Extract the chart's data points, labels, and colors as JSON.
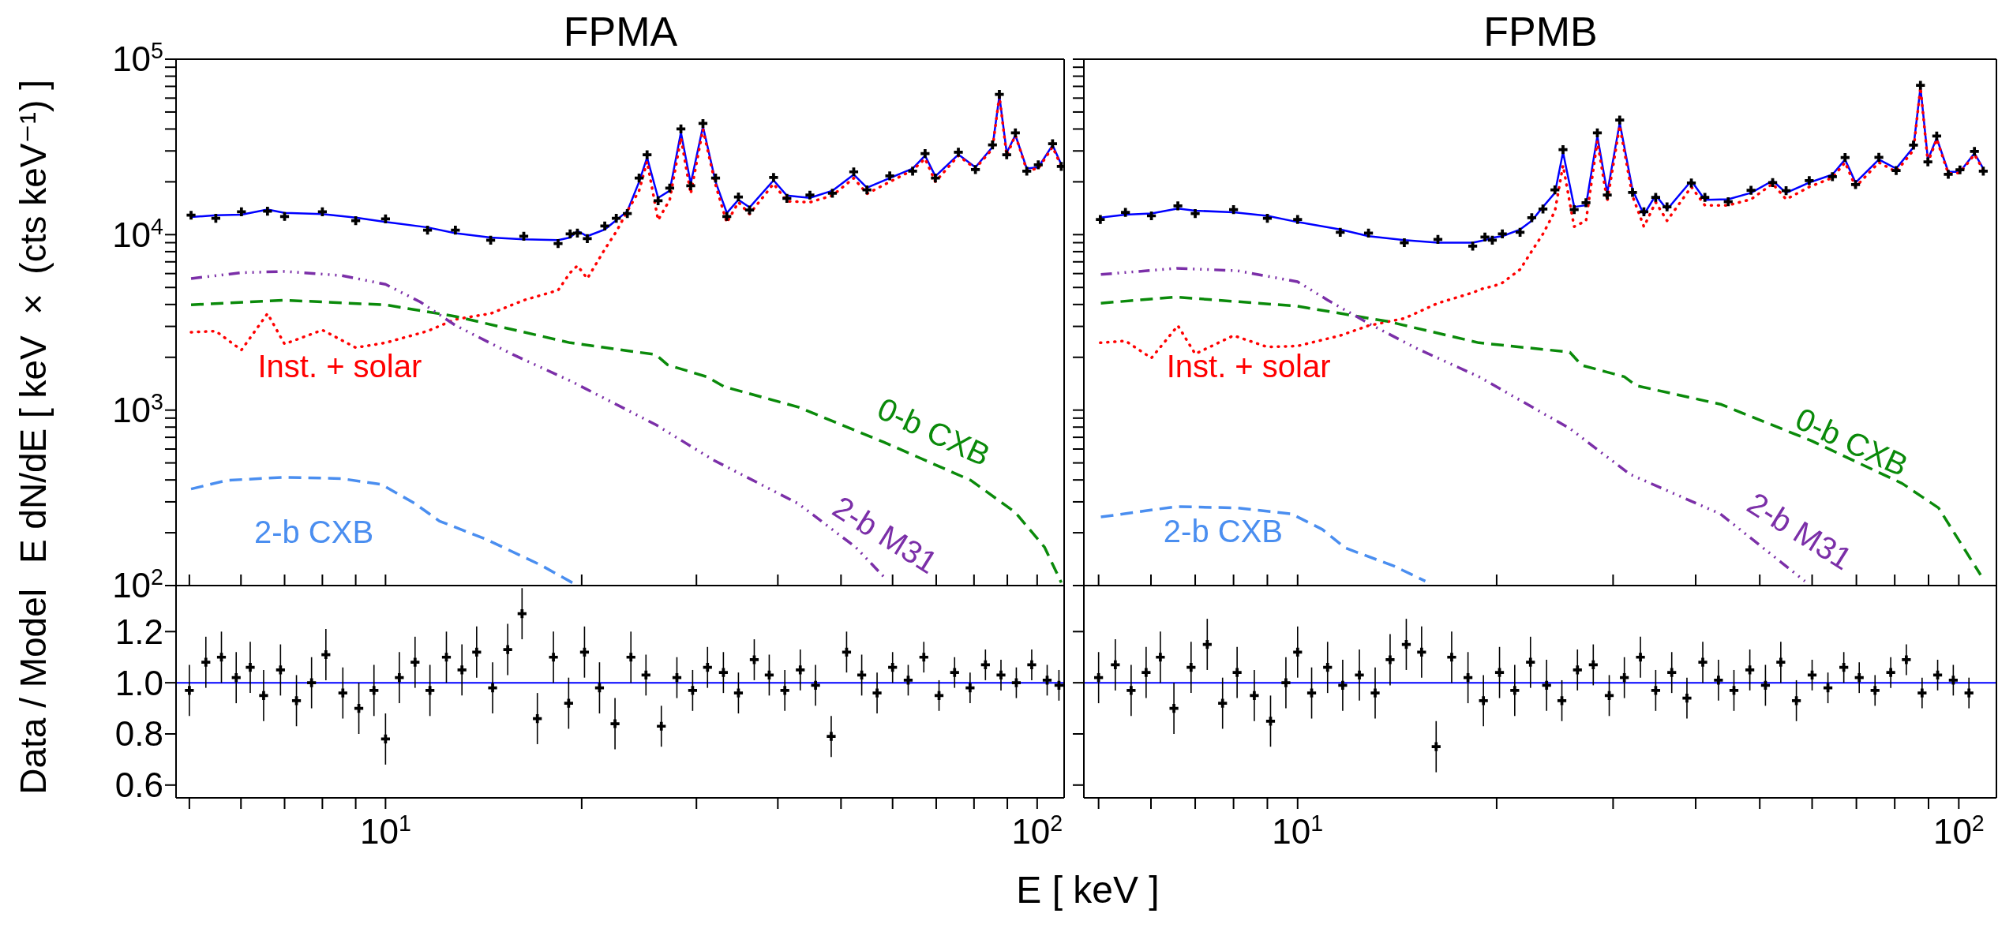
{
  "chart_data": [
    {
      "type": "line",
      "title": "FPMA",
      "ylabel": "E dN/dE [ keV × (cts keV⁻¹) ]",
      "log": "xy",
      "tick_labels": "y",
      "xlim": [
        4.77,
        110
      ],
      "ylim": [
        100,
        100000
      ],
      "xticks": [
        {
          "value": 5,
          "label": null
        },
        {
          "value": 6,
          "label": null
        },
        {
          "value": 7,
          "label": null
        },
        {
          "value": 8,
          "label": null
        },
        {
          "value": 9,
          "label": null
        },
        {
          "value": 10,
          "label": null
        },
        {
          "value": 20,
          "label": null
        },
        {
          "value": 30,
          "label": null
        },
        {
          "value": 40,
          "label": null
        },
        {
          "value": 50,
          "label": null
        },
        {
          "value": 60,
          "label": null
        },
        {
          "value": 70,
          "label": null
        },
        {
          "value": 80,
          "label": null
        },
        {
          "value": 90,
          "label": null
        },
        {
          "value": 100,
          "label": null
        }
      ],
      "yticks": [
        {
          "value": 100,
          "label": "10$^{2}$"
        },
        {
          "value": 200,
          "label": null
        },
        {
          "value": 300,
          "label": null
        },
        {
          "value": 400,
          "label": null
        },
        {
          "value": 500,
          "label": null
        },
        {
          "value": 600,
          "label": null
        },
        {
          "value": 700,
          "label": null
        },
        {
          "value": 800,
          "label": null
        },
        {
          "value": 900,
          "label": null
        },
        {
          "value": 1000,
          "label": "10$^{3}$"
        },
        {
          "value": 2000,
          "label": null
        },
        {
          "value": 3000,
          "label": null
        },
        {
          "value": 4000,
          "label": null
        },
        {
          "value": 5000,
          "label": null
        },
        {
          "value": 6000,
          "label": null
        },
        {
          "value": 7000,
          "label": null
        },
        {
          "value": 8000,
          "label": null
        },
        {
          "value": 9000,
          "label": null
        },
        {
          "value": 10000,
          "label": "10$^{4}$"
        },
        {
          "value": 20000,
          "label": null
        },
        {
          "value": 30000,
          "label": null
        },
        {
          "value": 40000,
          "label": null
        },
        {
          "value": 50000,
          "label": null
        },
        {
          "value": 60000,
          "label": null
        },
        {
          "value": 70000,
          "label": null
        },
        {
          "value": 80000,
          "label": null
        },
        {
          "value": 90000,
          "label": null
        },
        {
          "value": 100000,
          "label": "10$^{5}$"
        }
      ],
      "series": [
        {
          "type": "scatter",
          "color": "#000000",
          "marker": "cross",
          "x": [
            5.03,
            5.49,
            6.01,
            6.59,
            7.0,
            8.0,
            9.0,
            10,
            11.6,
            12.8,
            14.5,
            16.3,
            18.4,
            19.2,
            19.7,
            20.4,
            21.7,
            22.6,
            23.5,
            24.5,
            25.2,
            26.2,
            27.3,
            28.4,
            29.4,
            30.7,
            32.1,
            33.4,
            34.8,
            36.2,
            39.4,
            41.3,
            44.8,
            48.5,
            52.3,
            54.8,
            59.4,
            64.4,
            67.3,
            69.8,
            75.7,
            80.4,
            85.4,
            87.5,
            89.8,
            92.6,
            96.4,
            100.4,
            105.6,
            108.9
          ],
          "values": [
            12900,
            12400,
            13500,
            13600,
            12700,
            13500,
            12000,
            12300,
            10600,
            10600,
            9300,
            9800,
            8900,
            10100,
            10200,
            9500,
            11200,
            12400,
            13200,
            21000,
            28500,
            15600,
            18400,
            40000,
            19000,
            43000,
            21000,
            12700,
            16400,
            13800,
            21200,
            16100,
            16800,
            17200,
            22800,
            18000,
            21600,
            23000,
            29000,
            21000,
            29500,
            23500,
            32500,
            63000,
            28500,
            38000,
            23000,
            25000,
            33000,
            24500
          ],
          "errors": [
            650,
            600,
            700,
            700,
            650,
            700,
            600,
            600,
            550,
            550,
            500,
            500,
            450,
            500,
            500,
            500,
            550,
            600,
            650,
            1000,
            1400,
            800,
            900,
            2000,
            950,
            2100,
            1000,
            650,
            800,
            700,
            1000,
            800,
            850,
            850,
            1100,
            900,
            1100,
            1150,
            1450,
            1050,
            1500,
            1200,
            1600,
            3000,
            1400,
            1900,
            1150,
            1250,
            1650,
            1200
          ]
        },
        {
          "color": "#0000ff",
          "line_style": "solid",
          "x": [
            5.03,
            5.49,
            6.01,
            6.59,
            7.0,
            8.0,
            9.0,
            10,
            11.6,
            12.8,
            14.5,
            16.3,
            18.4,
            19.2,
            19.7,
            20.4,
            21.7,
            22.6,
            23.5,
            24.5,
            25.2,
            26.2,
            27.3,
            28.4,
            29.4,
            30.7,
            32.1,
            33.4,
            34.8,
            36.2,
            39.4,
            41.3,
            44.8,
            48.5,
            52.3,
            54.8,
            59.4,
            64.4,
            67.3,
            69.8,
            75.7,
            80.4,
            85.4,
            87.5,
            89.8,
            92.6,
            96.4,
            100.4,
            105.6,
            108.9
          ],
          "values": [
            12600,
            12900,
            13000,
            13900,
            13300,
            13100,
            12500,
            11800,
            11000,
            10200,
            9620,
            9400,
            9300,
            9620,
            10500,
            9800,
            10700,
            12100,
            13600,
            20000,
            27500,
            16200,
            17800,
            38300,
            19500,
            41400,
            20000,
            13300,
            15800,
            14300,
            20400,
            16700,
            16200,
            17800,
            22000,
            18500,
            21000,
            23800,
            28200,
            21500,
            28600,
            24200,
            31600,
            61700,
            29300,
            36900,
            23800,
            24200,
            32400,
            25100
          ]
        },
        {
          "type": "line",
          "name": "Inst. + solar",
          "color": "#ff0000",
          "line_style": "dotted",
          "x": [
            5.03,
            5.49,
            6.01,
            6.59,
            7.0,
            8.0,
            9.0,
            10,
            11.6,
            12.8,
            14.5,
            16.3,
            18.4,
            19.2,
            19.7,
            20.4,
            21.7,
            22.6,
            23.5,
            24.5,
            25.2,
            26.2,
            27.3,
            28.4,
            29.4,
            30.7,
            32.1,
            33.4,
            34.8,
            36.2,
            39.4,
            41.3,
            44.8,
            48.5,
            52.3,
            54.8,
            59.4,
            64.4,
            67.3,
            69.8,
            75.7,
            80.4,
            85.4,
            87.5,
            89.8,
            92.6,
            96.4,
            100.4,
            105.6,
            108.9
          ],
          "values": [
            2780,
            2820,
            2200,
            3550,
            2380,
            2860,
            2270,
            2420,
            2820,
            3290,
            3550,
            4230,
            4820,
            6070,
            6660,
            5620,
            8250,
            10400,
            13600,
            17800,
            26100,
            12100,
            15800,
            35500,
            17100,
            39800,
            19200,
            11700,
            15300,
            13100,
            19500,
            15500,
            15300,
            16700,
            21000,
            17100,
            20000,
            23300,
            27100,
            20000,
            28200,
            23800,
            30900,
            61700,
            28200,
            36900,
            23300,
            23800,
            31600,
            24500
          ]
        },
        {
          "type": "line",
          "name": "0-b CXB",
          "color": "#0a8a0a",
          "line_style": "dashed",
          "x": [
            5.03,
            7.0,
            10,
            12.8,
            19.2,
            26.0,
            27.1,
            31.1,
            33.1,
            43.0,
            58.2,
            79.1,
            92.6,
            102.7,
            108.9
          ],
          "values": [
            3980,
            4230,
            3980,
            3420,
            2420,
            2070,
            1810,
            1550,
            1360,
            1040,
            656,
            398,
            261,
            165,
            104
          ]
        },
        {
          "type": "line",
          "name": "2-b M31",
          "color": "#7b2fa8",
          "line_style": "dashdot",
          "x": [
            5.03,
            6.01,
            7.0,
            8.56,
            10,
            11.3,
            12.8,
            15.7,
            19.2,
            26.0,
            31.8,
            43.0,
            52.7,
            58.2
          ],
          "values": [
            5620,
            6070,
            6170,
            5850,
            5210,
            4140,
            3040,
            2070,
            1470,
            825,
            521,
            293,
            165,
            112
          ]
        },
        {
          "type": "line",
          "name": "2-b CXB",
          "color": "#4a8ef0",
          "line_style": "dashed",
          "x": [
            5.03,
            5.71,
            7.0,
            8.56,
            9.86,
            11.1,
            12.1,
            14.2,
            17.3,
            19.7
          ],
          "values": [
            355,
            398,
            414,
            407,
            377,
            293,
            233,
            185,
            131,
            100
          ]
        }
      ]
    },
    {
      "type": "line",
      "title": "FPMB",
      "log": "xy",
      "tick_labels": false,
      "xlim": [
        4.75,
        114
      ],
      "ylim": [
        100,
        100000
      ],
      "xticks": [
        {
          "value": 5,
          "label": null
        },
        {
          "value": 6,
          "label": null
        },
        {
          "value": 7,
          "label": null
        },
        {
          "value": 8,
          "label": null
        },
        {
          "value": 9,
          "label": null
        },
        {
          "value": 10,
          "label": null
        },
        {
          "value": 20,
          "label": null
        },
        {
          "value": 30,
          "label": null
        },
        {
          "value": 40,
          "label": null
        },
        {
          "value": 50,
          "label": null
        },
        {
          "value": 60,
          "label": null
        },
        {
          "value": 70,
          "label": null
        },
        {
          "value": 80,
          "label": null
        },
        {
          "value": 90,
          "label": null
        },
        {
          "value": 100,
          "label": null
        }
      ],
      "yticks": [
        {
          "value": 100,
          "label": null
        },
        {
          "value": 200,
          "label": null
        },
        {
          "value": 300,
          "label": null
        },
        {
          "value": 400,
          "label": null
        },
        {
          "value": 500,
          "label": null
        },
        {
          "value": 600,
          "label": null
        },
        {
          "value": 700,
          "label": null
        },
        {
          "value": 800,
          "label": null
        },
        {
          "value": 900,
          "label": null
        },
        {
          "value": 1000,
          "label": null
        },
        {
          "value": 2000,
          "label": null
        },
        {
          "value": 3000,
          "label": null
        },
        {
          "value": 4000,
          "label": null
        },
        {
          "value": 5000,
          "label": null
        },
        {
          "value": 6000,
          "label": null
        },
        {
          "value": 7000,
          "label": null
        },
        {
          "value": 8000,
          "label": null
        },
        {
          "value": 9000,
          "label": null
        },
        {
          "value": 10000,
          "label": null
        },
        {
          "value": 20000,
          "label": null
        },
        {
          "value": 30000,
          "label": null
        },
        {
          "value": 40000,
          "label": null
        },
        {
          "value": 50000,
          "label": null
        },
        {
          "value": 60000,
          "label": null
        },
        {
          "value": 70000,
          "label": null
        },
        {
          "value": 80000,
          "label": null
        },
        {
          "value": 90000,
          "label": null
        },
        {
          "value": 100000,
          "label": null
        }
      ],
      "series": [
        {
          "type": "scatter",
          "color": "#000000",
          "marker": "cross",
          "x": [
            5.03,
            5.49,
            6.01,
            6.59,
            7.0,
            8.0,
            9.0,
            10,
            11.6,
            12.8,
            14.5,
            16.3,
            18.4,
            19.2,
            19.7,
            20.4,
            21.7,
            22.6,
            23.5,
            24.5,
            25.2,
            26.2,
            27.3,
            28.4,
            29.4,
            30.7,
            32.1,
            33.4,
            34.8,
            36.2,
            39.4,
            41.3,
            44.8,
            48.5,
            52.3,
            54.8,
            59.4,
            64.4,
            67.3,
            69.8,
            75.7,
            80.4,
            85.4,
            87.5,
            89.8,
            92.6,
            96.4,
            100.4,
            105.6,
            108.9
          ],
          "values": [
            12200,
            13400,
            12800,
            14600,
            13200,
            13900,
            12400,
            12200,
            10300,
            10200,
            9000,
            9400,
            8600,
            9700,
            9300,
            10100,
            10300,
            12500,
            14000,
            18000,
            30500,
            13900,
            15200,
            38000,
            16800,
            45000,
            17400,
            13500,
            16300,
            14400,
            19700,
            16300,
            15400,
            17900,
            19800,
            17800,
            20300,
            21400,
            27500,
            19300,
            27600,
            23200,
            32400,
            71000,
            26000,
            36500,
            22100,
            23400,
            29800,
            23000
          ],
          "errors": [
            600,
            650,
            650,
            700,
            650,
            700,
            600,
            600,
            500,
            500,
            450,
            450,
            450,
            500,
            450,
            500,
            500,
            600,
            700,
            900,
            1500,
            700,
            750,
            1900,
            850,
            2200,
            850,
            650,
            800,
            700,
            1000,
            800,
            750,
            900,
            1000,
            900,
            1000,
            1050,
            1400,
            950,
            1400,
            1150,
            1600,
            3500,
            1300,
            1800,
            1100,
            1150,
            1500,
            1150
          ]
        },
        {
          "color": "#0000ff",
          "line_style": "solid",
          "x": [
            5.03,
            5.49,
            6.01,
            6.59,
            7.0,
            8.0,
            9.0,
            10,
            11.6,
            12.8,
            14.5,
            16.3,
            18.4,
            19.2,
            19.7,
            20.4,
            21.7,
            22.6,
            23.5,
            24.5,
            25.2,
            26.2,
            27.3,
            28.4,
            29.4,
            30.7,
            32.1,
            33.4,
            34.8,
            36.2,
            39.4,
            41.3,
            44.8,
            48.5,
            52.3,
            54.8,
            59.4,
            64.4,
            67.3,
            69.8,
            75.7,
            80.4,
            85.4,
            87.5,
            89.8,
            92.6,
            96.4,
            100.4,
            105.6,
            108.9
          ],
          "values": [
            12500,
            13000,
            13200,
            14100,
            13700,
            13400,
            12800,
            11800,
            10700,
            9800,
            9300,
            9000,
            9000,
            9300,
            9600,
            9800,
            10700,
            12000,
            14400,
            17300,
            29500,
            14400,
            14700,
            36400,
            17300,
            43400,
            18000,
            13000,
            16800,
            13900,
            20300,
            15800,
            15900,
            17300,
            20300,
            17300,
            19800,
            22000,
            26800,
            19800,
            26800,
            23800,
            31500,
            69100,
            26800,
            35500,
            22800,
            22800,
            29100,
            23800
          ]
        },
        {
          "type": "line",
          "name": "Inst. + solar",
          "color": "#ff0000",
          "line_style": "dotted",
          "x": [
            5.03,
            5.49,
            6.01,
            6.59,
            7.0,
            8.0,
            9.0,
            10,
            11.6,
            12.8,
            14.5,
            16.3,
            18.4,
            19.2,
            19.7,
            20.4,
            21.7,
            22.6,
            23.5,
            24.5,
            25.2,
            26.2,
            27.3,
            28.4,
            29.4,
            30.7,
            32.1,
            33.4,
            34.8,
            36.2,
            39.4,
            41.3,
            44.8,
            48.5,
            52.3,
            54.8,
            59.4,
            64.4,
            67.3,
            69.8,
            75.7,
            80.4,
            85.4,
            87.5,
            89.8,
            92.6,
            96.4,
            100.4,
            105.6,
            108.9
          ],
          "values": [
            2420,
            2480,
            1980,
            3030,
            2090,
            2660,
            2290,
            2320,
            2660,
            3030,
            3330,
            4070,
            4670,
            4980,
            5060,
            5310,
            6330,
            8050,
            10100,
            13600,
            24800,
            11100,
            12000,
            34100,
            15500,
            41700,
            16600,
            11100,
            15300,
            12000,
            18700,
            14700,
            14700,
            15900,
            19500,
            15900,
            18700,
            21100,
            25800,
            18700,
            25800,
            22800,
            30300,
            69100,
            25800,
            35000,
            22300,
            22500,
            28600,
            23400
          ]
        },
        {
          "type": "line",
          "name": "0-b CXB",
          "color": "#0a8a0a",
          "line_style": "dashed",
          "x": [
            5.04,
            6.56,
            10,
            13.7,
            18.8,
            25.8,
            26.9,
            31.2,
            32.5,
            43.6,
            59.8,
            82.1,
            93.2,
            107.9
          ],
          "values": [
            4070,
            4410,
            3910,
            3200,
            2420,
            2140,
            1800,
            1550,
            1380,
            1080,
            670,
            382,
            277,
            115
          ]
        },
        {
          "type": "line",
          "name": "2-b M31",
          "color": "#7b2fa8",
          "line_style": "dashdot",
          "x": [
            5.04,
            6.56,
            8.1,
            10,
            11.1,
            12.9,
            15.2,
            18.8,
            25.8,
            31.8,
            43.6,
            58.5
          ],
          "values": [
            5930,
            6430,
            6230,
            5390,
            4240,
            3070,
            2230,
            1550,
            786,
            431,
            256,
            106
          ]
        },
        {
          "type": "line",
          "name": "2-b CXB",
          "color": "#4a8ef0",
          "line_style": "dashed",
          "x": [
            5.04,
            6.56,
            8.1,
            9.79,
            10.9,
            11.8,
            14.0,
            15.6
          ],
          "values": [
            246,
            282,
            277,
            256,
            209,
            164,
            129,
            106
          ]
        }
      ]
    },
    {
      "type": "scatter",
      "ylabel": "Data / Model",
      "xlabel": "E [ keV ]",
      "log": "x",
      "xlim": [
        4.77,
        110
      ],
      "ylim": [
        0.55,
        1.38
      ],
      "xticks": [
        {
          "value": 5,
          "label": null
        },
        {
          "value": 6,
          "label": null
        },
        {
          "value": 7,
          "label": null
        },
        {
          "value": 8,
          "label": null
        },
        {
          "value": 9,
          "label": null
        },
        {
          "value": 10,
          "label": "10$^{1}$"
        },
        {
          "value": 20,
          "label": null
        },
        {
          "value": 30,
          "label": null
        },
        {
          "value": 40,
          "label": null
        },
        {
          "value": 50,
          "label": null
        },
        {
          "value": 60,
          "label": null
        },
        {
          "value": 70,
          "label": null
        },
        {
          "value": 80,
          "label": null
        },
        {
          "value": 90,
          "label": null
        },
        {
          "value": 100,
          "label": "10$^{2}$"
        }
      ],
      "yticks": [
        0.6,
        0.8,
        {
          "value": 1,
          "label": "1.0"
        },
        1.2
      ],
      "ref_lines": [
        {
          "axis": "y",
          "value": 1,
          "color": "#0000ff"
        }
      ],
      "series": [
        {
          "color": "#000000",
          "marker": "cross",
          "x": [
            5.0,
            5.3,
            5.6,
            5.9,
            6.2,
            6.5,
            6.9,
            7.3,
            7.7,
            8.1,
            8.6,
            9.1,
            9.6,
            10.0,
            10.5,
            11.1,
            11.7,
            12.4,
            13.1,
            13.8,
            14.6,
            15.4,
            16.2,
            17.1,
            18.1,
            19.1,
            20.2,
            21.3,
            22.5,
            23.8,
            25.1,
            26.5,
            28.0,
            29.6,
            31.2,
            33.0,
            34.8,
            36.8,
            38.8,
            41.0,
            43.3,
            45.7,
            48.3,
            51.0,
            53.8,
            56.8,
            60.0,
            63.4,
            67.0,
            70.7,
            74.7,
            78.9,
            83.3,
            88.0,
            92.9,
            98.1,
            103.6,
            108.0
          ],
          "values": [
            0.97,
            1.08,
            1.1,
            1.02,
            1.06,
            0.95,
            1.05,
            0.93,
            1.0,
            1.11,
            0.96,
            0.9,
            0.97,
            0.78,
            1.02,
            1.08,
            0.97,
            1.1,
            1.05,
            1.12,
            0.98,
            1.13,
            1.27,
            0.86,
            1.1,
            0.92,
            1.12,
            0.98,
            0.84,
            1.1,
            1.03,
            0.83,
            1.02,
            0.97,
            1.06,
            1.04,
            0.96,
            1.09,
            1.03,
            0.97,
            1.05,
            0.99,
            0.79,
            1.12,
            1.03,
            0.96,
            1.06,
            1.01,
            1.1,
            0.95,
            1.04,
            0.98,
            1.07,
            1.03,
            1.0,
            1.07,
            1.01,
            0.99
          ],
          "errors": [
            0.1,
            0.1,
            0.1,
            0.1,
            0.1,
            0.1,
            0.1,
            0.1,
            0.1,
            0.1,
            0.1,
            0.1,
            0.1,
            0.1,
            0.1,
            0.1,
            0.1,
            0.1,
            0.1,
            0.1,
            0.1,
            0.1,
            0.1,
            0.1,
            0.1,
            0.1,
            0.1,
            0.1,
            0.1,
            0.1,
            0.08,
            0.08,
            0.08,
            0.08,
            0.08,
            0.08,
            0.08,
            0.08,
            0.08,
            0.08,
            0.08,
            0.08,
            0.08,
            0.08,
            0.08,
            0.08,
            0.06,
            0.06,
            0.06,
            0.06,
            0.06,
            0.06,
            0.06,
            0.06,
            0.06,
            0.06,
            0.06,
            0.06
          ]
        }
      ]
    },
    {
      "type": "scatter",
      "log": "x",
      "tick_labels": "x",
      "xlim": [
        4.75,
        114
      ],
      "ylim": [
        0.55,
        1.38
      ],
      "yticks": [
        {
          "value": 0.6,
          "label": null
        },
        {
          "value": 0.8,
          "label": null
        },
        {
          "value": 1,
          "label": null
        },
        {
          "value": 1.2,
          "label": null
        }
      ],
      "xticks": [
        {
          "value": 5,
          "label": null
        },
        {
          "value": 6,
          "label": null
        },
        {
          "value": 7,
          "label": null
        },
        {
          "value": 8,
          "label": null
        },
        {
          "value": 9,
          "label": null
        },
        {
          "value": 10,
          "label": "10$^{1}$"
        },
        {
          "value": 20,
          "label": null
        },
        {
          "value": 30,
          "label": null
        },
        {
          "value": 40,
          "label": null
        },
        {
          "value": 50,
          "label": null
        },
        {
          "value": 60,
          "label": null
        },
        {
          "value": 70,
          "label": null
        },
        {
          "value": 80,
          "label": null
        },
        {
          "value": 90,
          "label": null
        },
        {
          "value": 100,
          "label": "10$^{2}$"
        }
      ],
      "ref_lines": [
        {
          "axis": "y",
          "value": 1,
          "color": "#0000ff"
        }
      ],
      "series": [
        {
          "color": "#000000",
          "marker": "cross",
          "x": [
            5.0,
            5.3,
            5.6,
            5.9,
            6.2,
            6.5,
            6.9,
            7.3,
            7.7,
            8.1,
            8.6,
            9.1,
            9.6,
            10.0,
            10.5,
            11.1,
            11.7,
            12.4,
            13.1,
            13.8,
            14.6,
            15.4,
            16.2,
            17.1,
            18.1,
            19.1,
            20.2,
            21.3,
            22.5,
            23.8,
            25.1,
            26.5,
            28.0,
            29.6,
            31.2,
            33.0,
            34.8,
            36.8,
            38.8,
            41.0,
            43.3,
            45.7,
            48.3,
            51.0,
            53.8,
            56.8,
            60.0,
            63.4,
            67.0,
            70.7,
            74.7,
            78.9,
            83.3,
            88.0,
            92.9,
            98.1,
            103.6
          ],
          "values": [
            1.02,
            1.07,
            0.97,
            1.04,
            1.1,
            0.9,
            1.06,
            1.15,
            0.92,
            1.04,
            0.95,
            0.85,
            1.0,
            1.12,
            0.96,
            1.06,
            0.99,
            1.03,
            0.96,
            1.09,
            1.15,
            1.12,
            0.75,
            1.1,
            1.02,
            0.93,
            1.04,
            0.97,
            1.08,
            0.99,
            0.93,
            1.05,
            1.07,
            0.95,
            1.02,
            1.1,
            0.97,
            1.04,
            0.94,
            1.08,
            1.01,
            0.97,
            1.05,
            0.99,
            1.08,
            0.93,
            1.03,
            0.98,
            1.06,
            1.02,
            0.97,
            1.04,
            1.09,
            0.96,
            1.03,
            1.01,
            0.96
          ],
          "errors": [
            0.1,
            0.1,
            0.1,
            0.1,
            0.1,
            0.1,
            0.1,
            0.1,
            0.1,
            0.1,
            0.1,
            0.1,
            0.1,
            0.1,
            0.1,
            0.1,
            0.1,
            0.1,
            0.1,
            0.1,
            0.1,
            0.1,
            0.1,
            0.1,
            0.1,
            0.1,
            0.1,
            0.1,
            0.1,
            0.1,
            0.08,
            0.08,
            0.08,
            0.08,
            0.08,
            0.08,
            0.08,
            0.08,
            0.08,
            0.08,
            0.08,
            0.08,
            0.08,
            0.08,
            0.08,
            0.08,
            0.06,
            0.06,
            0.06,
            0.06,
            0.06,
            0.06,
            0.06,
            0.06,
            0.06,
            0.06,
            0.06
          ]
        }
      ]
    }
  ]
}
